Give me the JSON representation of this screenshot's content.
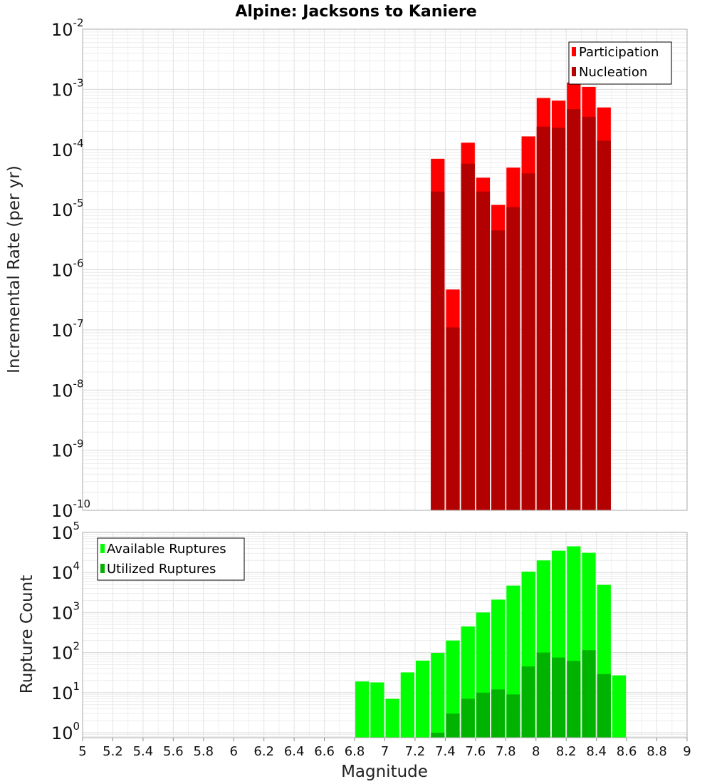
{
  "chart_data": [
    {
      "type": "bar",
      "title": "Alpine: Jacksons to Kaniere",
      "xlabel": "",
      "ylabel": "Incremental Rate (per yr)",
      "yscale": "log",
      "xlim": [
        5,
        9
      ],
      "ylim": [
        1e-10,
        0.01
      ],
      "ytick_exponents": [
        "-10",
        "-9",
        "-8",
        "-7",
        "-6",
        "-5",
        "-4",
        "-3",
        "-2"
      ],
      "grid": true,
      "legend_position": "top-right",
      "x": [
        7.35,
        7.45,
        7.55,
        7.65,
        7.75,
        7.85,
        7.95,
        8.05,
        8.15,
        8.25,
        8.35,
        8.45
      ],
      "series": [
        {
          "name": "Participation",
          "color": "#ff0000",
          "values": [
            7e-05,
            4.7e-07,
            0.00013,
            3.4e-05,
            1.2e-05,
            5e-05,
            0.000165,
            0.00072,
            0.00065,
            0.0013,
            0.0011,
            0.0005
          ]
        },
        {
          "name": "Nucleation",
          "color": "#b30000",
          "values": [
            2e-05,
            1.1e-07,
            5.8e-05,
            2e-05,
            4.5e-06,
            1.1e-05,
            4e-05,
            0.00024,
            0.00023,
            0.00047,
            0.00035,
            0.00014
          ]
        }
      ]
    },
    {
      "type": "bar",
      "title": "",
      "xlabel": "Magnitude",
      "ylabel": "Rupture Count",
      "yscale": "log",
      "xlim": [
        5,
        9
      ],
      "ylim": [
        0.75,
        100000.0
      ],
      "ytick_exponents": [
        "0",
        "1",
        "2",
        "3",
        "4",
        "5"
      ],
      "xticks": [
        "5",
        "5.2",
        "5.4",
        "5.6",
        "5.8",
        "6",
        "6.2",
        "6.4",
        "6.6",
        "6.8",
        "7",
        "7.2",
        "7.4",
        "7.6",
        "7.8",
        "8",
        "8.2",
        "8.4",
        "8.6",
        "8.8",
        "9"
      ],
      "grid": true,
      "legend_position": "top-left",
      "x": [
        6.85,
        6.95,
        7.05,
        7.15,
        7.25,
        7.35,
        7.45,
        7.55,
        7.65,
        7.75,
        7.85,
        7.95,
        8.05,
        8.15,
        8.25,
        8.35,
        8.45,
        8.55
      ],
      "series": [
        {
          "name": "Available Ruptures",
          "color": "#00ff00",
          "values": [
            19,
            18,
            7,
            32,
            63,
            98,
            200,
            450,
            1000,
            2100,
            4700,
            10500,
            20000,
            35000,
            45000,
            31000,
            4900,
            27
          ]
        },
        {
          "name": "Utilized Ruptures",
          "color": "#00b300",
          "values": [
            0,
            0,
            0,
            0,
            0,
            1,
            3,
            7,
            10,
            12,
            9,
            45,
            100,
            75,
            62,
            115,
            29,
            0
          ]
        }
      ]
    }
  ]
}
